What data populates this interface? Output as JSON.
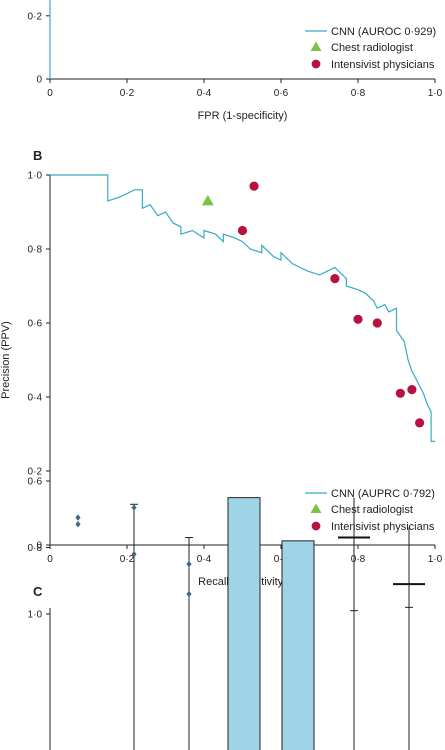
{
  "colors": {
    "cnn": "#38a9c6",
    "radiologist": "#7dc242",
    "intensivist": "#b5123f",
    "box_fill": "#9dd5e6",
    "axis": "#222222",
    "outlier": "#3d6a86"
  },
  "chart_data": [
    {
      "panel": "",
      "type": "line",
      "xlabel": "FPR (1-specificity)",
      "ylabel": "",
      "xlim": [
        0,
        1
      ],
      "ylim": [
        0,
        1
      ],
      "x_ticks": [
        "0",
        "0·2",
        "0·4",
        "0·6",
        "0·8",
        "1·0"
      ],
      "y_ticks": [
        "0",
        "0·2"
      ],
      "legend_position": "bottom-right",
      "series": [
        {
          "name": "CNN (AUROC 0·929)",
          "kind": "step",
          "x": [
            0,
            0,
            0
          ],
          "y": [
            0,
            0.27,
            0.4
          ]
        }
      ],
      "markers": [
        {
          "name": "Chest radiologist",
          "shape": "triangle",
          "points": []
        },
        {
          "name": "Intensivist physicians",
          "shape": "circle",
          "points": []
        }
      ]
    },
    {
      "panel": "B",
      "type": "line",
      "xlabel": "Recall (sensitivity)",
      "ylabel": "Precision (PPV)",
      "xlim": [
        0,
        1
      ],
      "ylim": [
        0,
        1
      ],
      "x_ticks": [
        "0",
        "0·2",
        "0·4",
        "0·6",
        "0·8",
        "1·0"
      ],
      "y_ticks": [
        "0",
        "0·2",
        "0·4",
        "0·6",
        "0·8",
        "1·0"
      ],
      "legend_position": "bottom-right",
      "series": [
        {
          "name": "CNN (AUPRC 0·792)",
          "kind": "step",
          "x": [
            0,
            0.15,
            0.15,
            0.18,
            0.2,
            0.22,
            0.24,
            0.24,
            0.26,
            0.28,
            0.3,
            0.32,
            0.34,
            0.34,
            0.37,
            0.4,
            0.4,
            0.43,
            0.45,
            0.45,
            0.48,
            0.5,
            0.52,
            0.55,
            0.55,
            0.58,
            0.6,
            0.6,
            0.63,
            0.65,
            0.67,
            0.7,
            0.72,
            0.74,
            0.77,
            0.77,
            0.8,
            0.82,
            0.84,
            0.85,
            0.87,
            0.88,
            0.9,
            0.9,
            0.92,
            0.93,
            0.94,
            0.95,
            0.96,
            0.97,
            0.98,
            0.99,
            0.99,
            1.0
          ],
          "y": [
            1.0,
            1.0,
            0.93,
            0.94,
            0.95,
            0.96,
            0.96,
            0.91,
            0.92,
            0.89,
            0.9,
            0.87,
            0.86,
            0.84,
            0.85,
            0.83,
            0.85,
            0.84,
            0.82,
            0.84,
            0.83,
            0.82,
            0.8,
            0.79,
            0.81,
            0.78,
            0.77,
            0.79,
            0.76,
            0.75,
            0.74,
            0.73,
            0.74,
            0.75,
            0.72,
            0.7,
            0.69,
            0.68,
            0.66,
            0.64,
            0.65,
            0.63,
            0.64,
            0.58,
            0.55,
            0.5,
            0.47,
            0.45,
            0.43,
            0.41,
            0.38,
            0.36,
            0.28,
            0.28
          ]
        }
      ],
      "markers": [
        {
          "name": "Chest radiologist",
          "shape": "triangle",
          "points": [
            [
              0.41,
              0.93
            ]
          ]
        },
        {
          "name": "Intensivist physicians",
          "shape": "circle",
          "points": [
            [
              0.53,
              0.97
            ],
            [
              0.5,
              0.85
            ],
            [
              0.74,
              0.72
            ],
            [
              0.8,
              0.61
            ],
            [
              0.85,
              0.6
            ],
            [
              0.91,
              0.41
            ],
            [
              0.94,
              0.42
            ],
            [
              0.96,
              0.33
            ]
          ]
        }
      ]
    },
    {
      "panel": "C",
      "type": "box",
      "xlabel": "",
      "ylabel": "",
      "ylim": [
        0,
        1
      ],
      "y_ticks": [
        "0·6",
        "0·8",
        "1·0"
      ],
      "y_tick_values": [
        0.6,
        0.8,
        1.0
      ],
      "boxes": [
        {
          "q1": null,
          "median": null,
          "q3": null,
          "whisker_low": null,
          "whisker_high": null,
          "outliers": [
            0.73,
            0.71
          ]
        },
        {
          "q1": null,
          "median": null,
          "q3": null,
          "whisker_low": null,
          "whisker_high": 0.67,
          "outliers": [
            0.82,
            0.68
          ]
        },
        {
          "q1": null,
          "median": null,
          "q3": null,
          "whisker_low": null,
          "whisker_high": 0.77,
          "outliers": [
            0.94,
            0.85
          ]
        },
        {
          "q1": null,
          "median": null,
          "q3": 0.65,
          "whisker_low": null,
          "whisker_high": 0.92,
          "outliers": []
        },
        {
          "q1": null,
          "median": null,
          "q3": 0.78,
          "whisker_low": null,
          "whisker_high": 0.93,
          "outliers": []
        },
        {
          "q1": 0.65,
          "median": 0.77,
          "q3": 0.93,
          "whisker_low": null,
          "whisker_high": 0.99,
          "outliers": []
        },
        {
          "q1": 0.74,
          "median": 0.91,
          "q3": 0.94,
          "whisker_low": null,
          "whisker_high": 0.98,
          "outliers": []
        }
      ]
    }
  ]
}
